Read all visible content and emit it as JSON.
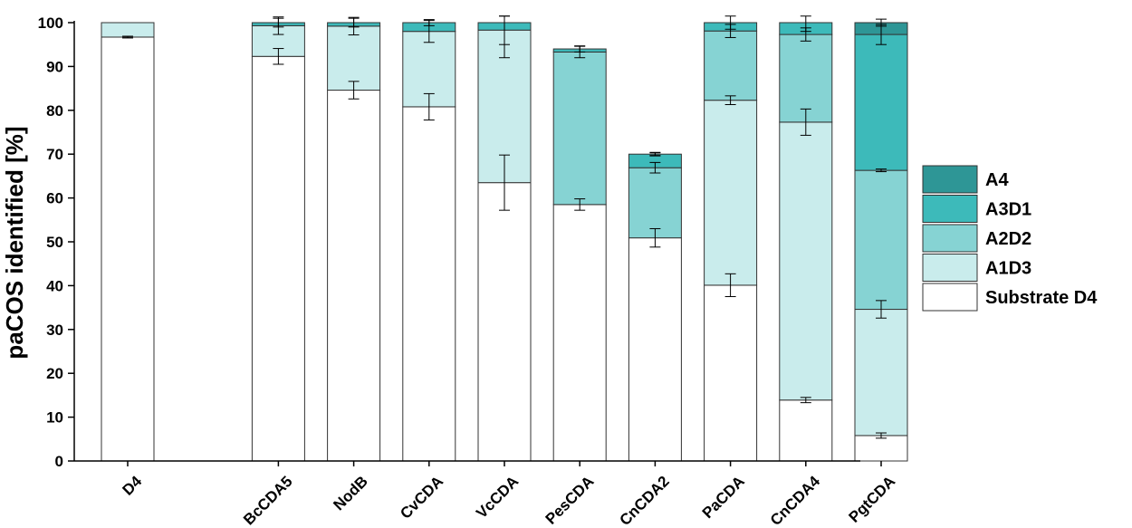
{
  "chart_data": {
    "type": "bar",
    "stacked": true,
    "title": "",
    "xlabel": "",
    "ylabel": "paCOS identified [%]",
    "ylim": [
      0,
      100
    ],
    "yticks": [
      0,
      10,
      20,
      30,
      40,
      50,
      60,
      70,
      80,
      90,
      100
    ],
    "legend_position": "right",
    "categories": [
      "D4",
      "BcCDA5",
      "NodB",
      "CvCDA",
      "VcCDA",
      "PesCDA",
      "CnCDA2",
      "PaCDA",
      "CnCDA4",
      "PgtCDA"
    ],
    "category_slots": [
      0,
      2,
      3,
      4,
      5,
      6,
      7,
      8,
      9,
      10
    ],
    "series": [
      {
        "name": "Substrate D4",
        "color": "#ffffff",
        "values": [
          96.7,
          92.3,
          84.6,
          80.8,
          63.5,
          58.5,
          50.9,
          40.1,
          13.9,
          5.8
        ],
        "errors": [
          0.2,
          1.8,
          2.0,
          3.0,
          6.3,
          1.3,
          2.1,
          2.6,
          0.6,
          0.6
        ]
      },
      {
        "name": "A1D3",
        "color": "#c9ecec",
        "values": [
          3.3,
          7.0,
          14.6,
          17.2,
          34.8,
          0,
          0,
          42.2,
          63.4,
          28.8
        ],
        "errors": [
          0,
          2.0,
          2.0,
          2.5,
          6.3,
          0,
          0,
          1.0,
          3.0,
          2.0
        ]
      },
      {
        "name": "A2D2",
        "color": "#86d3d3",
        "values": [
          0,
          0,
          0,
          0,
          0,
          34.8,
          16.0,
          15.8,
          20.0,
          31.7
        ],
        "errors": [
          0,
          0,
          0,
          0,
          0,
          1.3,
          1.2,
          1.5,
          1.5,
          0.3
        ]
      },
      {
        "name": "A3D1",
        "color": "#3dbaba",
        "values": [
          0,
          0.7,
          0.8,
          2.0,
          1.7,
          0.7,
          3.1,
          1.9,
          2.7,
          31.0
        ],
        "errors": [
          0,
          1.0,
          1.0,
          0.7,
          5.0,
          0.7,
          0.4,
          1.5,
          2.0,
          2.3
        ]
      },
      {
        "name": "A4",
        "color": "#2e9696",
        "values": [
          0,
          0,
          0,
          0,
          0,
          0,
          0,
          0,
          0,
          2.7
        ],
        "errors": [
          0,
          0,
          0,
          0,
          0,
          0,
          0.3,
          0,
          0,
          0.8
        ]
      }
    ]
  }
}
